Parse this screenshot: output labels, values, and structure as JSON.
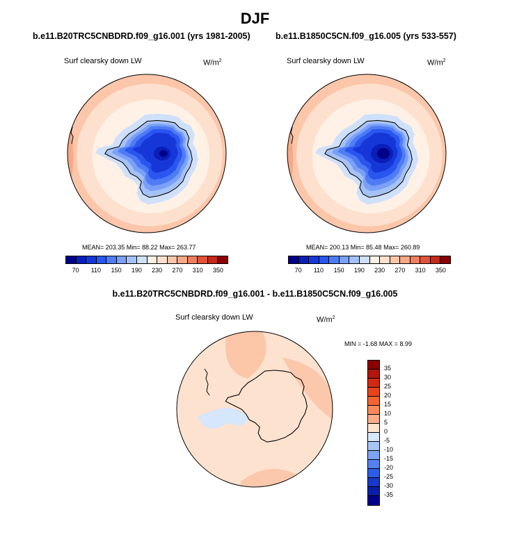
{
  "figure": {
    "title": "DJF",
    "difference_title": "b.e11.B20TRC5CNBDRD.f09_g16.001 - b.e11.B1850C5CN.f09_g16.005"
  },
  "chart_data": [
    {
      "type": "heatmap",
      "title": "b.e11.B20TRC5CNBDRD.f09_g16.001 (yrs 1981-2005)",
      "variable": "Surf clearsky down LW",
      "units": "W/m",
      "units_sup": "2",
      "stats": {
        "mean": "203.35",
        "min": "88.22",
        "max": "263.77",
        "text": "MEAN= 203.35  Min=  88.22  Max= 263.77"
      },
      "contour_levels": [
        70,
        90,
        110,
        130,
        150,
        170,
        190,
        210,
        230,
        250,
        270,
        290,
        310,
        330,
        350
      ],
      "colorbar_labels": [
        "70",
        "110",
        "150",
        "190",
        "230",
        "270",
        "310",
        "350"
      ],
      "colors": [
        "#00008b",
        "#0a1fb8",
        "#1637d8",
        "#2a55ef",
        "#4f7cf5",
        "#7aa0f7",
        "#a5c2f8",
        "#cfe0fb",
        "#fff1e6",
        "#fde0cd",
        "#fbc6aa",
        "#f6a888",
        "#ee8060",
        "#e0533a",
        "#c42a18",
        "#8b0000"
      ]
    },
    {
      "type": "heatmap",
      "title": "b.e11.B1850C5CN.f09_g16.005 (yrs 533-557)",
      "variable": "Surf clearsky down LW",
      "units": "W/m",
      "units_sup": "2",
      "stats": {
        "mean": "200.13",
        "min": "85.48",
        "max": "260.89",
        "text": "MEAN= 200.13  Min=  85.48  Max= 260.89"
      },
      "contour_levels": [
        70,
        90,
        110,
        130,
        150,
        170,
        190,
        210,
        230,
        250,
        270,
        290,
        310,
        330,
        350
      ],
      "colorbar_labels": [
        "70",
        "110",
        "150",
        "190",
        "230",
        "270",
        "310",
        "350"
      ],
      "colors": [
        "#00008b",
        "#0a1fb8",
        "#1637d8",
        "#2a55ef",
        "#4f7cf5",
        "#7aa0f7",
        "#a5c2f8",
        "#cfe0fb",
        "#fff1e6",
        "#fde0cd",
        "#fbc6aa",
        "#f6a888",
        "#ee8060",
        "#e0533a",
        "#c42a18",
        "#8b0000"
      ]
    },
    {
      "type": "heatmap",
      "title": "b.e11.B20TRC5CNBDRD.f09_g16.001 - b.e11.B1850C5CN.f09_g16.005",
      "variable": "Surf clearsky down LW",
      "units": "W/m",
      "units_sup": "2",
      "stats": {
        "min": "-1.68",
        "max": "8.99",
        "text": "MIN =  -1.68 MAX =   8.99"
      },
      "contour_levels": [
        -35,
        -30,
        -25,
        -20,
        -15,
        -10,
        -5,
        0,
        5,
        10,
        15,
        20,
        25,
        30,
        35
      ],
      "colorbar_labels": [
        "35",
        "30",
        "25",
        "20",
        "15",
        "10",
        "5",
        "0",
        "-5",
        "-10",
        "-15",
        "-20",
        "-25",
        "-30",
        "-35"
      ],
      "colors": [
        "#8b0000",
        "#b0160c",
        "#d02a12",
        "#e8441c",
        "#f36432",
        "#f88a5c",
        "#fbae88",
        "#fde2cf",
        "#d6e6fb",
        "#a6c4f6",
        "#7da3f3",
        "#5580ee",
        "#2f5ce6",
        "#1839c9",
        "#0a1fa6",
        "#00008b"
      ]
    }
  ]
}
